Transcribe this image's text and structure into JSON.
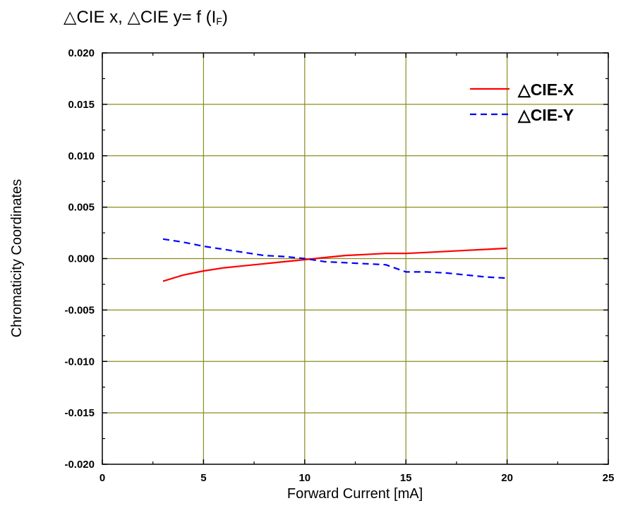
{
  "header": {
    "title_main": "△CIE x, △CIE y= f (I",
    "title_sub": "F",
    "title_close": ")"
  },
  "chart_data": {
    "type": "line",
    "title": "△CIE x, △CIE y= f (IF)",
    "xlabel": "Forward Current [mA]",
    "ylabel": "Chromaticity Coordinates",
    "xlim": [
      0,
      25
    ],
    "ylim": [
      -0.02,
      0.02
    ],
    "xticks": [
      0,
      5,
      10,
      15,
      20,
      25
    ],
    "xtick_labels": [
      "0",
      "5",
      "10",
      "15",
      "20",
      "25"
    ],
    "yticks": [
      0.02,
      0.015,
      0.01,
      0.005,
      0.0,
      -0.005,
      -0.01,
      -0.015,
      -0.02
    ],
    "ytick_labels": [
      "0.020",
      "0.015",
      "0.010",
      "0.005",
      "0.000",
      "-0.005",
      "-0.010",
      "-0.015",
      "-0.020"
    ],
    "grid": true,
    "grid_color": "#8c8c1e",
    "legend_position": "top-right",
    "series": [
      {
        "name": "△CIE-X",
        "color": "#ff0000",
        "style": "solid",
        "x": [
          3,
          4,
          5,
          6,
          7,
          8,
          9,
          10,
          11,
          12,
          13,
          14,
          15,
          16,
          17,
          18,
          19,
          20
        ],
        "y": [
          -0.0022,
          -0.0016,
          -0.0012,
          -0.0009,
          -0.0007,
          -0.0005,
          -0.0003,
          -0.0001,
          0.0001,
          0.0003,
          0.0004,
          0.0005,
          0.0005,
          0.0006,
          0.0007,
          0.0008,
          0.0009,
          0.001
        ]
      },
      {
        "name": "△CIE-Y",
        "color": "#0000ff",
        "style": "dashed",
        "x": [
          3,
          4,
          5,
          6,
          7,
          8,
          9,
          10,
          11,
          12,
          13,
          14,
          15,
          16,
          17,
          18,
          19,
          20
        ],
        "y": [
          0.0019,
          0.0016,
          0.0012,
          0.0009,
          0.0006,
          0.0003,
          0.0002,
          0.0,
          -0.0003,
          -0.0004,
          -0.0005,
          -0.0006,
          -0.0013,
          -0.0013,
          -0.0014,
          -0.0016,
          -0.0018,
          -0.0019
        ]
      }
    ]
  }
}
